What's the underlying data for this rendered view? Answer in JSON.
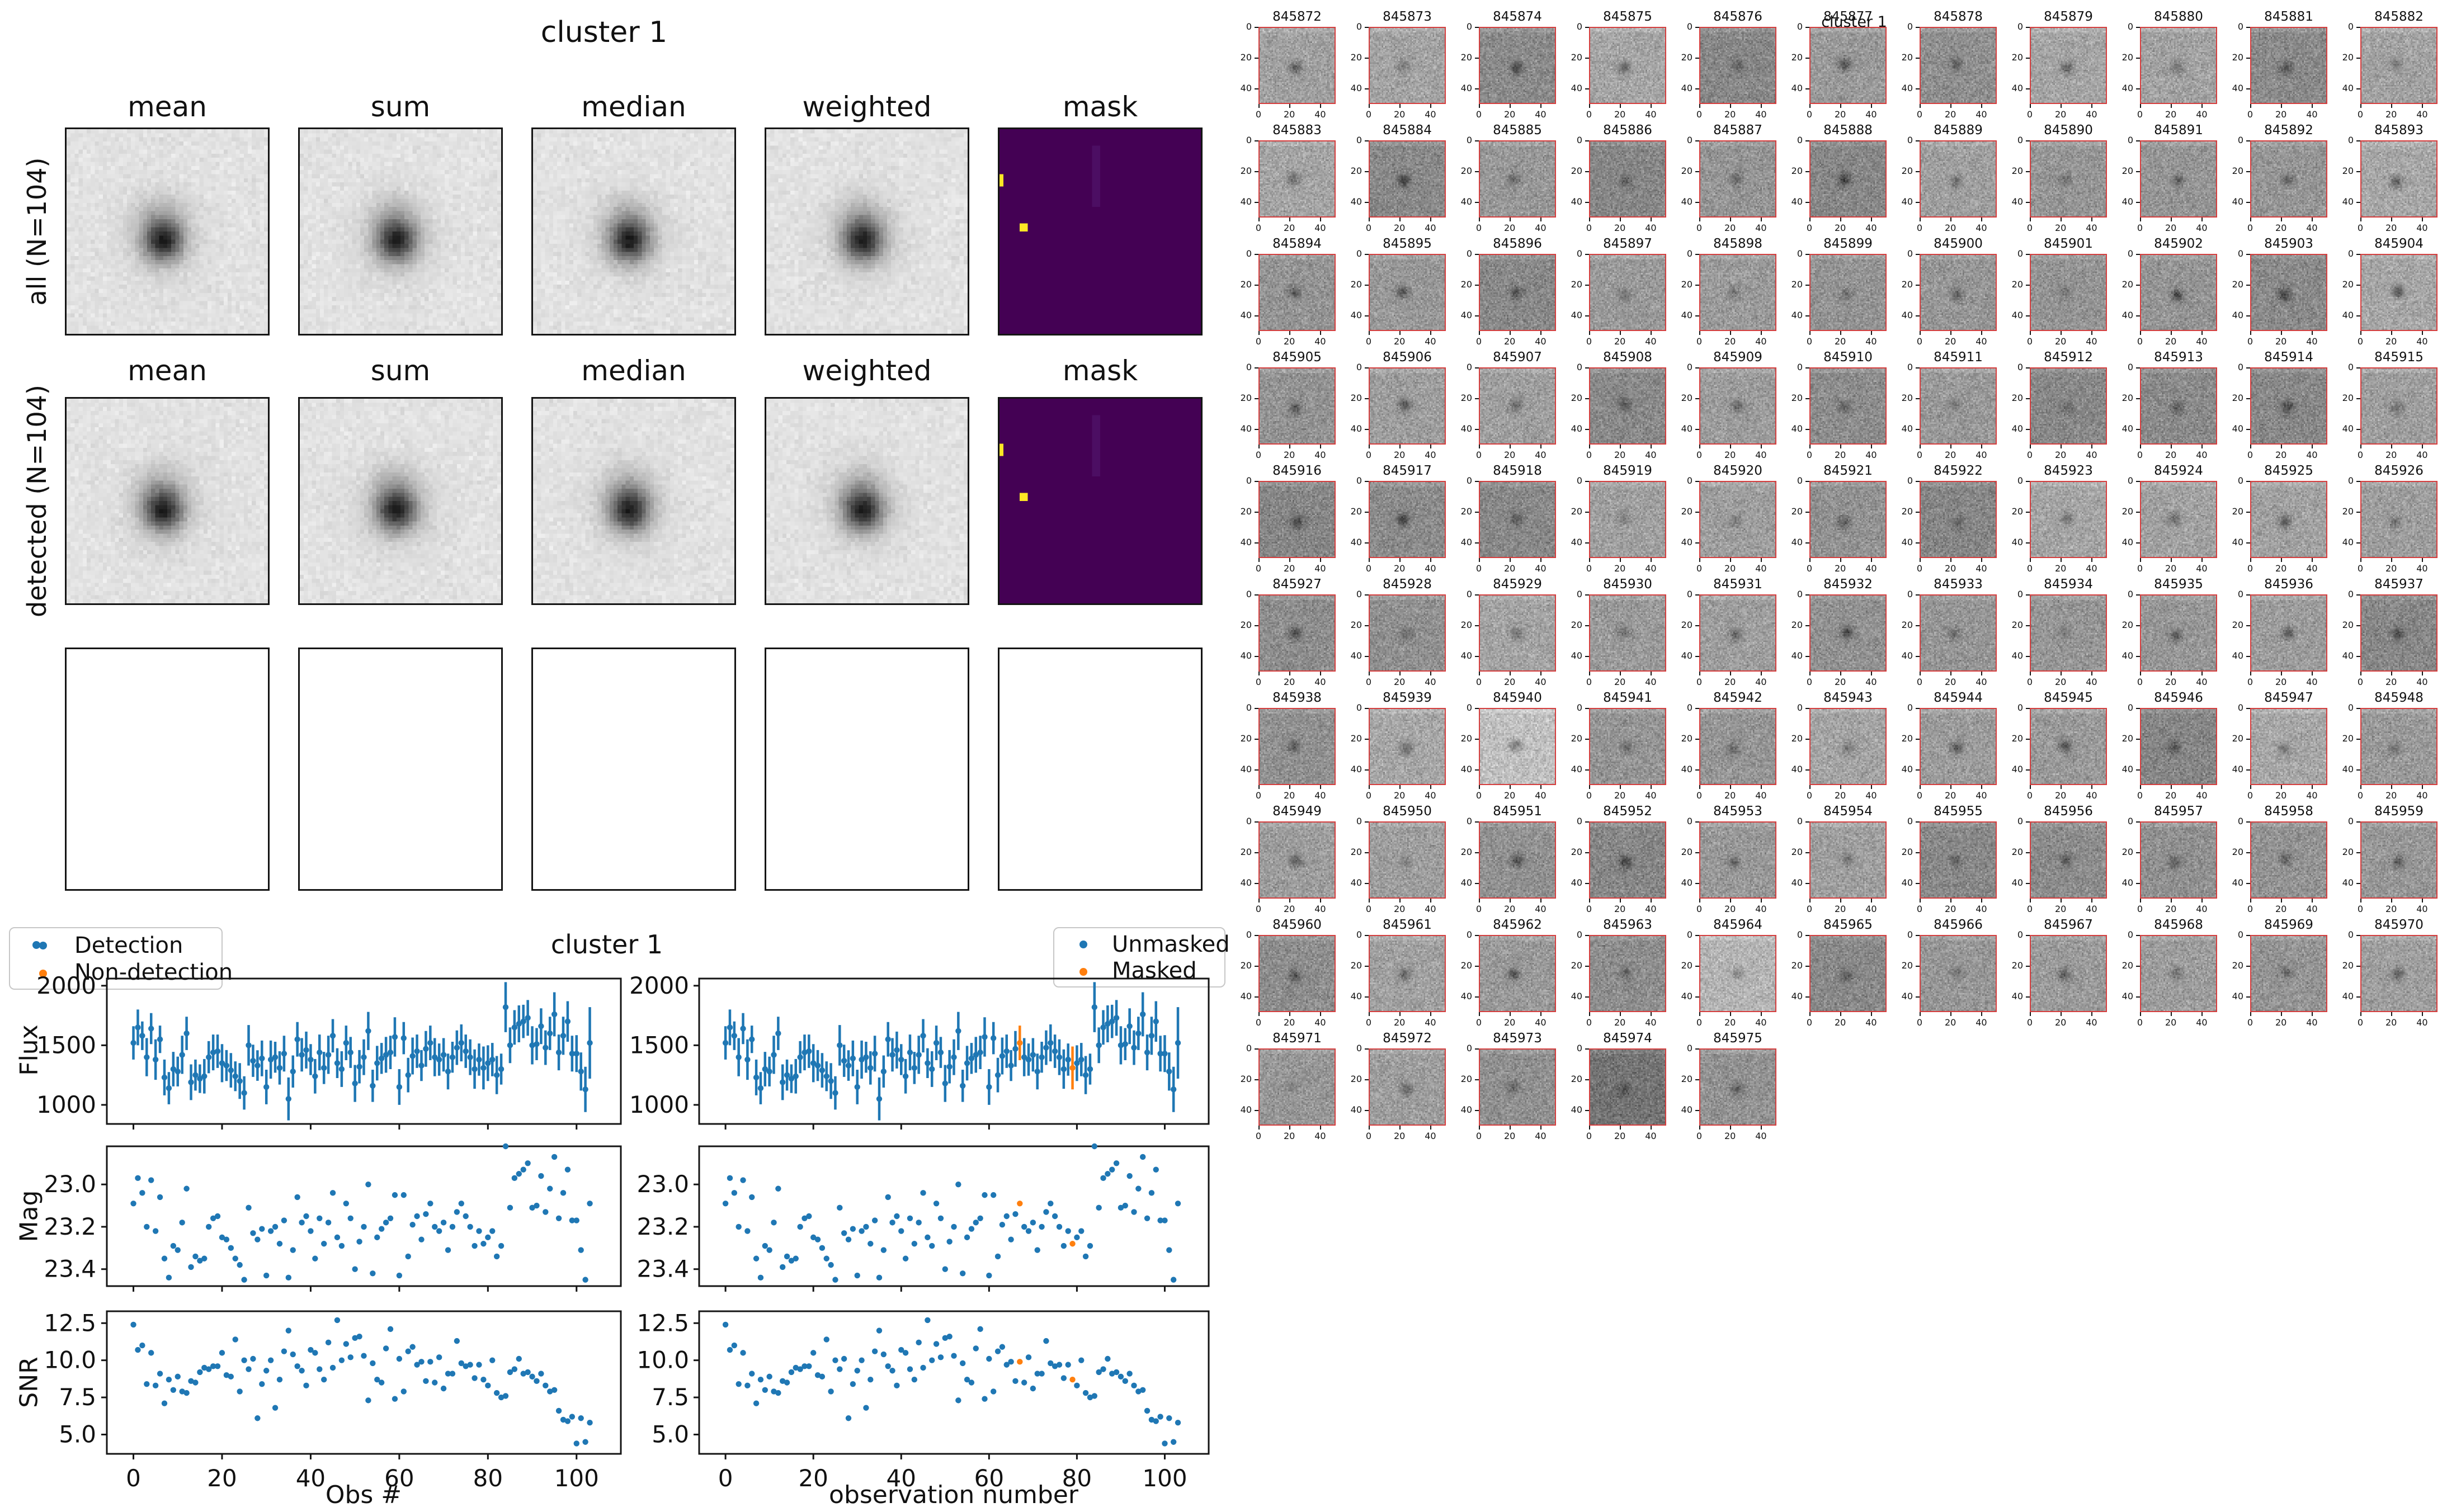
{
  "colors": {
    "detection_blue": "#1f77b4",
    "masked_orange": "#ff7f0e",
    "mask_background_purple": "#440154",
    "mask_pixel_yellow": "#fde725",
    "thumb_border_red": "#d53e3e",
    "spine_black": "#151515"
  },
  "left_figure": {
    "title": "cluster 1",
    "columns": [
      "mean",
      "sum",
      "median",
      "weighted",
      "mask"
    ],
    "rows": [
      {
        "label": "all (N=104)"
      },
      {
        "label": "detected (N=104)"
      },
      {
        "label": ""
      }
    ]
  },
  "chart_data": {
    "type": "scatter",
    "suptitle": "cluster 1",
    "n_points": 104,
    "xlim": [
      -6,
      110
    ],
    "xticks": [
      0,
      20,
      40,
      60,
      80,
      100
    ],
    "left_column": {
      "xlabel": "Obs #",
      "legend": [
        "Detection",
        "Non-detection"
      ]
    },
    "right_column": {
      "xlabel": "observation number",
      "legend": [
        "Unmasked",
        "Masked"
      ]
    },
    "panels": [
      {
        "ylabel": "Flux",
        "yticks": [
          1000,
          1500,
          2000
        ],
        "ylim": [
          840,
          2060
        ],
        "series_key": "flux",
        "error_key": "flux_err"
      },
      {
        "ylabel": "Mag",
        "yticks": [
          23.0,
          23.2,
          23.4
        ],
        "ylim": [
          23.48,
          22.82
        ],
        "series_key": "mag"
      },
      {
        "ylabel": "SNR",
        "yticks": [
          5.0,
          7.5,
          10.0,
          12.5
        ],
        "ylim": [
          3.7,
          13.3
        ],
        "series_key": "snr"
      }
    ],
    "masked_indices": [
      67,
      79
    ],
    "flux": [
      1520,
      1650,
      1580,
      1400,
      1640,
      1380,
      1550,
      1230,
      1140,
      1300,
      1280,
      1420,
      1600,
      1190,
      1250,
      1220,
      1240,
      1400,
      1440,
      1450,
      1350,
      1330,
      1290,
      1240,
      1200,
      1100,
      1500,
      1370,
      1330,
      1390,
      1150,
      1380,
      1400,
      1310,
      1430,
      1050,
      1280,
      1550,
      1420,
      1460,
      1380,
      1240,
      1440,
      1310,
      1420,
      1580,
      1350,
      1300,
      1520,
      1440,
      1180,
      1320,
      1400,
      1620,
      1160,
      1350,
      1390,
      1420,
      1440,
      1570,
      1150,
      1560,
      1250,
      1410,
      1450,
      1330,
      1470,
      1520,
      1400,
      1380,
      1420,
      1280,
      1400,
      1480,
      1520,
      1450,
      1400,
      1300,
      1380,
      1310,
      1350,
      1380,
      1250,
      1300,
      1820,
      1500,
      1650,
      1680,
      1700,
      1730,
      1500,
      1510,
      1660,
      1480,
      1600,
      1760,
      1440,
      1580,
      1700,
      1430,
      1430,
      1280,
      1130,
      1520
    ],
    "flux_err": [
      140,
      150,
      120,
      160,
      130,
      170,
      115,
      150,
      135,
      145,
      125,
      160,
      140,
      150,
      130,
      120,
      145,
      135,
      150,
      140,
      160,
      130,
      145,
      125,
      150,
      140,
      170,
      135,
      128,
      150,
      145,
      160,
      130,
      140,
      150,
      180,
      135,
      145,
      140,
      155,
      130,
      145,
      150,
      135,
      160,
      140,
      125,
      150,
      145,
      130,
      155,
      140,
      150,
      160,
      135,
      145,
      130,
      150,
      140,
      165,
      150,
      135,
      145,
      155,
      140,
      130,
      150,
      145,
      160,
      135,
      140,
      150,
      130,
      145,
      155,
      140,
      150,
      165,
      135,
      180,
      150,
      140,
      160,
      130,
      210,
      150,
      145,
      155,
      140,
      150,
      160,
      135,
      150,
      145,
      140,
      185,
      150,
      160,
      170,
      150,
      155,
      160,
      190,
      300
    ],
    "mag": [
      23.09,
      22.97,
      23.04,
      23.2,
      22.98,
      23.22,
      23.06,
      23.35,
      23.44,
      23.29,
      23.31,
      23.18,
      23.02,
      23.39,
      23.34,
      23.36,
      23.35,
      23.2,
      23.16,
      23.15,
      23.25,
      23.26,
      23.3,
      23.35,
      23.38,
      23.45,
      23.11,
      23.23,
      23.26,
      23.21,
      23.43,
      23.22,
      23.2,
      23.28,
      23.17,
      23.44,
      23.31,
      23.06,
      23.18,
      23.15,
      23.22,
      23.35,
      23.16,
      23.28,
      23.18,
      23.04,
      23.25,
      23.29,
      23.09,
      23.16,
      23.4,
      23.27,
      23.2,
      23.0,
      23.42,
      23.25,
      23.21,
      23.18,
      23.16,
      23.05,
      23.43,
      23.05,
      23.34,
      23.19,
      23.15,
      23.26,
      23.14,
      23.09,
      23.2,
      23.22,
      23.18,
      23.31,
      23.2,
      23.13,
      23.09,
      23.15,
      23.2,
      23.29,
      23.22,
      23.28,
      23.25,
      23.22,
      23.34,
      23.29,
      22.82,
      23.11,
      22.97,
      22.95,
      22.93,
      22.9,
      23.11,
      23.1,
      22.96,
      23.13,
      23.02,
      22.87,
      23.16,
      23.04,
      22.93,
      23.17,
      23.17,
      23.31,
      23.45,
      23.09
    ],
    "snr": [
      12.4,
      10.7,
      11.0,
      8.4,
      10.5,
      8.3,
      9.1,
      7.1,
      8.7,
      8.0,
      8.9,
      7.9,
      7.8,
      8.6,
      8.5,
      9.2,
      9.5,
      9.4,
      9.6,
      9.6,
      10.5,
      9.0,
      8.9,
      11.4,
      7.9,
      10.0,
      9.4,
      10.1,
      6.1,
      8.4,
      9.3,
      10.0,
      6.8,
      8.7,
      10.6,
      12.0,
      10.4,
      9.6,
      9.3,
      8.3,
      10.7,
      10.5,
      9.4,
      8.7,
      11.2,
      9.5,
      12.7,
      10.0,
      11.1,
      10.2,
      11.5,
      11.6,
      10.3,
      7.3,
      9.8,
      8.7,
      8.5,
      10.8,
      12.1,
      7.4,
      10.1,
      7.9,
      10.6,
      10.9,
      9.7,
      9.9,
      8.6,
      9.9,
      8.5,
      10.2,
      8.1,
      9.1,
      9.1,
      11.3,
      9.8,
      9.6,
      9.7,
      8.8,
      9.7,
      8.7,
      8.3,
      10.0,
      7.8,
      7.5,
      7.6,
      9.2,
      9.4,
      10.1,
      9.1,
      9.2,
      8.9,
      8.6,
      9.1,
      8.3,
      7.9,
      8.0,
      6.6,
      6.0,
      5.9,
      6.2,
      4.4,
      6.1,
      4.5,
      5.8
    ]
  },
  "thumbnails": {
    "suptitle": "cluster 1",
    "axis_ticks": [
      0,
      20,
      40
    ],
    "ids": [
      "845872",
      "845873",
      "845874",
      "845875",
      "845876",
      "845877",
      "845878",
      "845879",
      "845880",
      "845881",
      "845882",
      "845883",
      "845884",
      "845885",
      "845886",
      "845887",
      "845888",
      "845889",
      "845890",
      "845891",
      "845892",
      "845893",
      "845894",
      "845895",
      "845896",
      "845897",
      "845898",
      "845899",
      "845900",
      "845901",
      "845902",
      "845903",
      "845904",
      "845905",
      "845906",
      "845907",
      "845908",
      "845909",
      "845910",
      "845911",
      "845912",
      "845913",
      "845914",
      "845915",
      "845916",
      "845917",
      "845918",
      "845919",
      "845920",
      "845921",
      "845922",
      "845923",
      "845924",
      "845925",
      "845926",
      "845927",
      "845928",
      "845929",
      "845930",
      "845931",
      "845932",
      "845933",
      "845934",
      "845935",
      "845936",
      "845937",
      "845938",
      "845939",
      "845940",
      "845941",
      "845942",
      "845943",
      "845944",
      "845945",
      "845946",
      "845947",
      "845948",
      "845949",
      "845950",
      "845951",
      "845952",
      "845953",
      "845954",
      "845955",
      "845956",
      "845957",
      "845958",
      "845959",
      "845960",
      "845961",
      "845962",
      "845963",
      "845964",
      "845965",
      "845966",
      "845967",
      "845968",
      "845969",
      "845970",
      "845971",
      "845972",
      "845973",
      "845974",
      "845975"
    ]
  }
}
